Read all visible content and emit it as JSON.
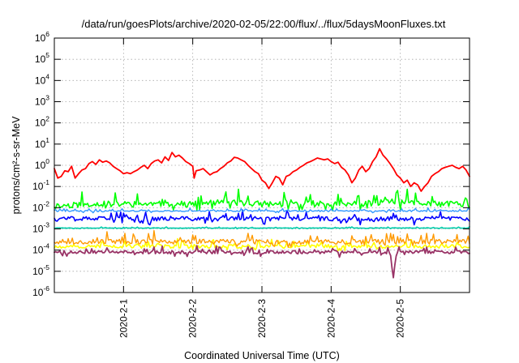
{
  "chart_data": {
    "type": "line",
    "title": "/data/run/goesPlots/archive/2020-02-05/22:00/flux/../flux/5daysMoonFluxes.txt",
    "xlabel": "Coordinated Universal Time (UTC)",
    "ylabel": "protons/cm²-s-sr-MeV",
    "y_scale": "log",
    "ylim": [
      1e-06,
      1000000.0
    ],
    "x_unit": "days",
    "xlim": [
      0,
      6
    ],
    "x_ticks": [
      {
        "x": 1,
        "label": "2020-2-1"
      },
      {
        "x": 2,
        "label": "2020-2-2"
      },
      {
        "x": 3,
        "label": "2020-2-3"
      },
      {
        "x": 4,
        "label": "2020-2-4"
      },
      {
        "x": 5,
        "label": "2020-2-5"
      }
    ],
    "y_ticks": [
      {
        "exp": -6,
        "base": "10",
        "sup": "-6"
      },
      {
        "exp": -5,
        "base": "10",
        "sup": "-5"
      },
      {
        "exp": -4,
        "base": "10",
        "sup": "-4"
      },
      {
        "exp": -3,
        "base": "10",
        "sup": "-3"
      },
      {
        "exp": -2,
        "base": "10",
        "sup": "-2"
      },
      {
        "exp": -1,
        "base": "10",
        "sup": "-1"
      },
      {
        "exp": 0,
        "base": "10",
        "sup": "0"
      },
      {
        "exp": 1,
        "base": "10",
        "sup": "1"
      },
      {
        "exp": 2,
        "base": "10",
        "sup": "2"
      },
      {
        "exp": 3,
        "base": "10",
        "sup": "3"
      },
      {
        "exp": 4,
        "base": "10",
        "sup": "4"
      },
      {
        "exp": 5,
        "base": "10",
        "sup": "5"
      },
      {
        "exp": 6,
        "base": "10",
        "sup": "6"
      }
    ],
    "grid": true,
    "series": [
      {
        "color": "#ff0000",
        "width": 1.8,
        "jitter": 0,
        "points": [
          [
            0.0,
            0.7
          ],
          [
            0.05,
            0.25
          ],
          [
            0.1,
            0.3
          ],
          [
            0.15,
            0.55
          ],
          [
            0.2,
            0.5
          ],
          [
            0.25,
            0.9
          ],
          [
            0.3,
            0.25
          ],
          [
            0.35,
            0.4
          ],
          [
            0.4,
            0.6
          ],
          [
            0.45,
            0.7
          ],
          [
            0.5,
            1.2
          ],
          [
            0.55,
            1.5
          ],
          [
            0.6,
            1.1
          ],
          [
            0.65,
            1.8
          ],
          [
            0.7,
            1.4
          ],
          [
            0.75,
            1.6
          ],
          [
            0.8,
            1.3
          ],
          [
            0.85,
            0.9
          ],
          [
            0.9,
            0.7
          ],
          [
            0.95,
            0.55
          ],
          [
            1.0,
            0.4
          ],
          [
            1.05,
            0.45
          ],
          [
            1.1,
            0.4
          ],
          [
            1.15,
            0.5
          ],
          [
            1.2,
            0.6
          ],
          [
            1.25,
            0.8
          ],
          [
            1.3,
            1.0
          ],
          [
            1.35,
            0.7
          ],
          [
            1.4,
            1.2
          ],
          [
            1.45,
            1.6
          ],
          [
            1.5,
            1.8
          ],
          [
            1.55,
            1.3
          ],
          [
            1.6,
            2.5
          ],
          [
            1.65,
            1.7
          ],
          [
            1.7,
            4.0
          ],
          [
            1.75,
            2.5
          ],
          [
            1.8,
            3.0
          ],
          [
            1.85,
            2.2
          ],
          [
            1.9,
            1.5
          ],
          [
            1.95,
            1.2
          ],
          [
            2.0,
            0.9
          ],
          [
            2.02,
            0.25
          ],
          [
            2.05,
            0.55
          ],
          [
            2.1,
            0.6
          ],
          [
            2.15,
            0.7
          ],
          [
            2.2,
            0.5
          ],
          [
            2.25,
            0.35
          ],
          [
            2.3,
            0.45
          ],
          [
            2.35,
            0.5
          ],
          [
            2.4,
            0.7
          ],
          [
            2.45,
            0.9
          ],
          [
            2.5,
            1.3
          ],
          [
            2.55,
            1.6
          ],
          [
            2.6,
            2.4
          ],
          [
            2.65,
            2.2
          ],
          [
            2.7,
            1.8
          ],
          [
            2.75,
            1.5
          ],
          [
            2.8,
            1.0
          ],
          [
            2.85,
            0.7
          ],
          [
            2.9,
            0.5
          ],
          [
            2.95,
            0.4
          ],
          [
            3.0,
            0.2
          ],
          [
            3.05,
            0.15
          ],
          [
            3.1,
            0.08
          ],
          [
            3.15,
            0.15
          ],
          [
            3.2,
            0.3
          ],
          [
            3.25,
            0.25
          ],
          [
            3.3,
            0.12
          ],
          [
            3.35,
            0.3
          ],
          [
            3.4,
            0.35
          ],
          [
            3.45,
            0.5
          ],
          [
            3.5,
            0.6
          ],
          [
            3.55,
            0.8
          ],
          [
            3.6,
            1.0
          ],
          [
            3.65,
            1.3
          ],
          [
            3.7,
            1.5
          ],
          [
            3.75,
            1.8
          ],
          [
            3.8,
            2.2
          ],
          [
            3.85,
            2.0
          ],
          [
            3.9,
            1.8
          ],
          [
            3.95,
            2.0
          ],
          [
            4.0,
            1.5
          ],
          [
            4.05,
            1.2
          ],
          [
            4.1,
            1.4
          ],
          [
            4.15,
            0.8
          ],
          [
            4.2,
            0.6
          ],
          [
            4.25,
            0.35
          ],
          [
            4.3,
            0.15
          ],
          [
            4.35,
            0.25
          ],
          [
            4.4,
            0.6
          ],
          [
            4.45,
            0.9
          ],
          [
            4.5,
            0.5
          ],
          [
            4.55,
            0.7
          ],
          [
            4.6,
            1.5
          ],
          [
            4.65,
            2.5
          ],
          [
            4.7,
            6.0
          ],
          [
            4.75,
            3.0
          ],
          [
            4.8,
            2.0
          ],
          [
            4.85,
            1.2
          ],
          [
            4.9,
            0.7
          ],
          [
            4.95,
            0.35
          ],
          [
            5.0,
            0.25
          ],
          [
            5.05,
            0.15
          ],
          [
            5.1,
            0.2
          ],
          [
            5.15,
            0.1
          ],
          [
            5.2,
            0.15
          ],
          [
            5.25,
            0.12
          ],
          [
            5.3,
            0.06
          ],
          [
            5.35,
            0.1
          ],
          [
            5.4,
            0.15
          ],
          [
            5.45,
            0.3
          ],
          [
            5.5,
            0.4
          ],
          [
            5.55,
            0.5
          ],
          [
            5.6,
            0.7
          ],
          [
            5.65,
            0.8
          ],
          [
            5.7,
            0.9
          ],
          [
            5.75,
            1.0
          ],
          [
            5.8,
            0.8
          ],
          [
            5.85,
            0.7
          ],
          [
            5.9,
            0.9
          ],
          [
            5.95,
            0.6
          ],
          [
            6.0,
            0.3
          ]
        ]
      },
      {
        "color": "#00ff00",
        "width": 1.6,
        "jitter": 0.55,
        "seed": 11,
        "points": [
          [
            0.0,
            0.012
          ],
          [
            0.5,
            0.015
          ],
          [
            1.0,
            0.015
          ],
          [
            1.5,
            0.015
          ],
          [
            2.0,
            0.015
          ],
          [
            2.5,
            0.018
          ],
          [
            3.0,
            0.015
          ],
          [
            3.5,
            0.015
          ],
          [
            4.0,
            0.015
          ],
          [
            4.5,
            0.015
          ],
          [
            5.0,
            0.018
          ],
          [
            5.5,
            0.015
          ],
          [
            6.0,
            0.015
          ]
        ]
      },
      {
        "color": "#00ccaa",
        "width": 1.6,
        "jitter": 0.05,
        "seed": 23,
        "points": [
          [
            0.0,
            0.0011
          ],
          [
            1.0,
            0.0011
          ],
          [
            2.0,
            0.0011
          ],
          [
            3.0,
            0.0011
          ],
          [
            4.0,
            0.0011
          ],
          [
            5.0,
            0.0011
          ],
          [
            6.0,
            0.0011
          ]
        ]
      },
      {
        "color": "#0000ff",
        "width": 1.6,
        "jitter": 0.4,
        "seed": 37,
        "points": [
          [
            0.0,
            0.003
          ],
          [
            1.0,
            0.003
          ],
          [
            2.0,
            0.003
          ],
          [
            3.0,
            0.003
          ],
          [
            4.0,
            0.003
          ],
          [
            5.0,
            0.003
          ],
          [
            6.0,
            0.003
          ]
        ]
      },
      {
        "color": "#3399ff",
        "width": 1.4,
        "jitter": 0.12,
        "seed": 41,
        "points": [
          [
            0.0,
            0.007
          ],
          [
            1.0,
            0.007
          ],
          [
            2.0,
            0.007
          ],
          [
            3.0,
            0.007
          ],
          [
            4.0,
            0.007
          ],
          [
            5.0,
            0.007
          ],
          [
            6.0,
            0.007
          ]
        ]
      },
      {
        "color": "#ffff00",
        "width": 1.6,
        "jitter": 0.35,
        "seed": 53,
        "points": [
          [
            0.0,
            0.00015
          ],
          [
            1.0,
            0.00015
          ],
          [
            2.0,
            0.00015
          ],
          [
            3.0,
            0.00015
          ],
          [
            4.0,
            0.00015
          ],
          [
            5.0,
            0.00015
          ],
          [
            6.0,
            0.00015
          ]
        ]
      },
      {
        "color": "#ff9900",
        "width": 1.4,
        "jitter": 0.45,
        "seed": 67,
        "points": [
          [
            0.0,
            0.00025
          ],
          [
            1.0,
            0.00025
          ],
          [
            2.0,
            0.00025
          ],
          [
            3.0,
            0.00025
          ],
          [
            4.0,
            0.00025
          ],
          [
            5.0,
            0.00025
          ],
          [
            6.0,
            0.00025
          ]
        ]
      },
      {
        "color": "#993366",
        "width": 1.8,
        "jitter": 0.3,
        "seed": 79,
        "points": [
          [
            0.0,
            8e-05
          ],
          [
            1.0,
            8e-05
          ],
          [
            2.0,
            8e-05
          ],
          [
            3.0,
            8e-05
          ],
          [
            4.0,
            8e-05
          ],
          [
            4.85,
            8e-05
          ],
          [
            4.9,
            5e-06
          ],
          [
            4.95,
            8e-05
          ],
          [
            5.0,
            8e-05
          ],
          [
            6.0,
            8e-05
          ]
        ]
      }
    ]
  }
}
